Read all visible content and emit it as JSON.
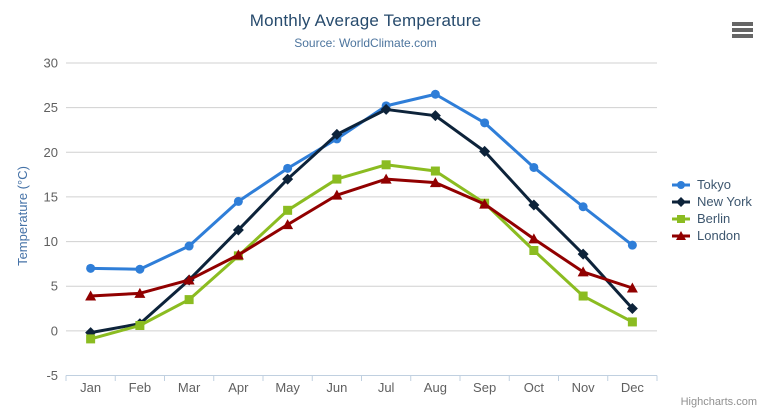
{
  "chart": {
    "title": "Monthly Average Temperature",
    "subtitle": "Source: WorldClimate.com",
    "credits": "Highcharts.com",
    "menu_icon": "hamburger-icon"
  },
  "chart_data": {
    "type": "line",
    "title": "Monthly Average Temperature",
    "subtitle": "Source: WorldClimate.com",
    "categories": [
      "Jan",
      "Feb",
      "Mar",
      "Apr",
      "May",
      "Jun",
      "Jul",
      "Aug",
      "Sep",
      "Oct",
      "Nov",
      "Dec"
    ],
    "series": [
      {
        "name": "Tokyo",
        "marker": "circle",
        "color": "#2f7ed8",
        "values": [
          7.0,
          6.9,
          9.5,
          14.5,
          18.2,
          21.5,
          25.2,
          26.5,
          23.3,
          18.3,
          13.9,
          9.6
        ]
      },
      {
        "name": "New York",
        "marker": "diamond",
        "color": "#0d233a",
        "values": [
          -0.2,
          0.8,
          5.7,
          11.3,
          17.0,
          22.0,
          24.8,
          24.1,
          20.1,
          14.1,
          8.6,
          2.5
        ]
      },
      {
        "name": "Berlin",
        "marker": "square",
        "color": "#8bbc21",
        "values": [
          -0.9,
          0.6,
          3.5,
          8.4,
          13.5,
          17.0,
          18.6,
          17.9,
          14.3,
          9.0,
          3.9,
          1.0
        ]
      },
      {
        "name": "London",
        "marker": "triangle",
        "color": "#910000",
        "values": [
          3.9,
          4.2,
          5.7,
          8.5,
          11.9,
          15.2,
          17.0,
          16.6,
          14.2,
          10.3,
          6.6,
          4.8
        ]
      }
    ],
    "xlabel": "",
    "ylabel": "Temperature (°C)",
    "ylim": [
      -5,
      30
    ],
    "ytick_step": 5,
    "grid": true,
    "legend_position": "right"
  },
  "colors": {
    "title": "#274b6d",
    "subtitle": "#4d759e",
    "axis_label": "#606060",
    "yaxis_title": "#4572a7",
    "legend_text": "#3e576f",
    "gridline": "#d0d0d0",
    "axis_line": "#c0d0e0",
    "credits": "#909090",
    "menu_bar": "#666666"
  }
}
